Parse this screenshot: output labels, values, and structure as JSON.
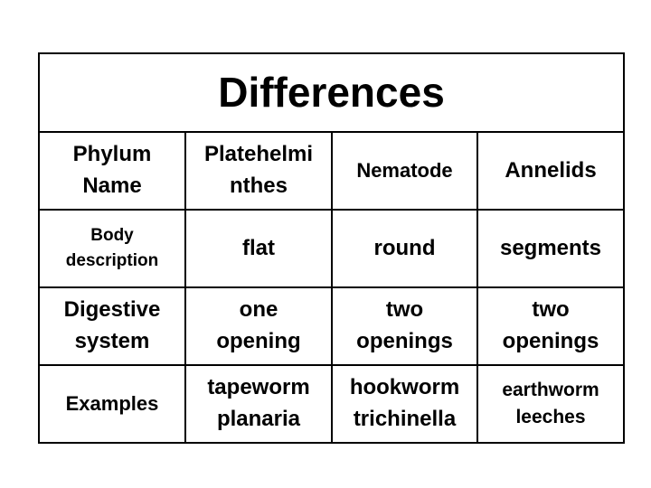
{
  "title": "Differences",
  "rows": [
    {
      "c0": [
        "Phylum",
        "Name"
      ],
      "c1": [
        "Platehelmi",
        "nthes"
      ],
      "c2": [
        "Nematode"
      ],
      "c3": [
        "Annelids"
      ]
    },
    {
      "c0": [
        "Body",
        "description"
      ],
      "c1": [
        "flat"
      ],
      "c2": [
        "round"
      ],
      "c3": [
        "segments"
      ]
    },
    {
      "c0": [
        "Digestive",
        "system"
      ],
      "c1": [
        "one",
        "opening"
      ],
      "c2": [
        "two",
        "openings"
      ],
      "c3": [
        "two",
        "openings"
      ]
    },
    {
      "c0": [
        "Examples"
      ],
      "c1": [
        "tapeworm",
        "planaria"
      ],
      "c2": [
        "hookworm",
        "trichinella"
      ],
      "c3": [
        "earthworm",
        "leeches"
      ]
    }
  ]
}
